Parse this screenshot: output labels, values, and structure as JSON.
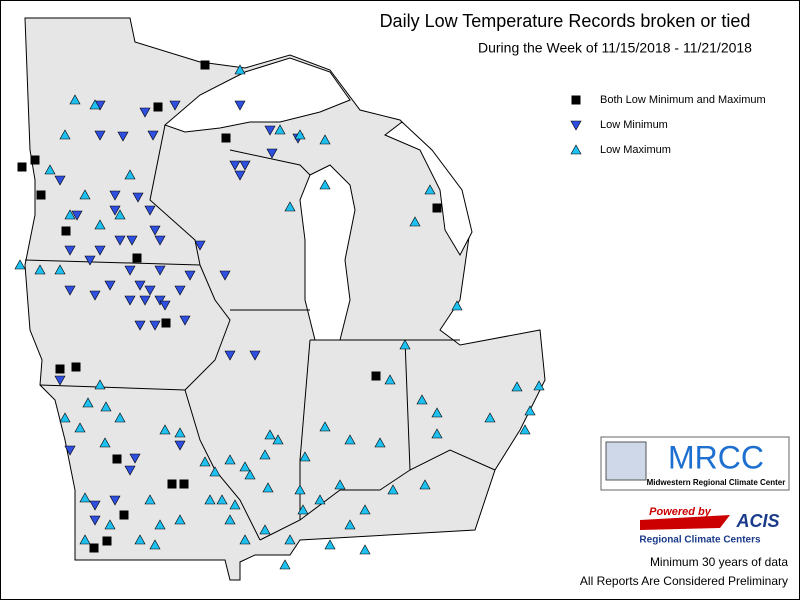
{
  "header": {
    "title": "Daily Low Temperature Records broken or tied",
    "subtitle": "During the Week of 11/15/2018 - 11/21/2018"
  },
  "legend": {
    "items": [
      "Both Low Minimum and Maximum",
      "Low Minimum",
      "Low Maximum"
    ]
  },
  "logos": {
    "mrcc": "MRCC",
    "mrcc_name": "Midwestern Regional Climate Center",
    "powered_by": "Powered by",
    "acis": "ACIS",
    "acis_name": "Regional Climate Centers"
  },
  "notes": [
    "Minimum 30 years of data",
    "All Reports Are Considered Preliminary"
  ]
}
